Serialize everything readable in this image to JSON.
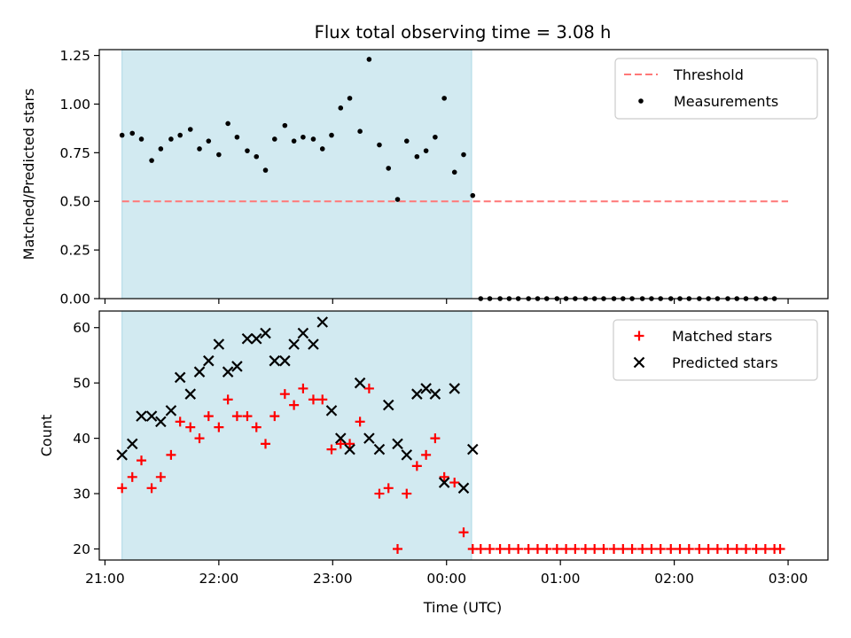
{
  "figure": {
    "title": "Flux total observing time = 3.08 h",
    "xlabel": "Time (UTC)",
    "xticks": [
      "21:00",
      "22:00",
      "23:00",
      "00:00",
      "01:00",
      "02:00",
      "03:00"
    ]
  },
  "colors": {
    "shade": "#add8e6",
    "threshold": "#ff7777",
    "measurements": "#000000",
    "matched": "#ff0000",
    "predicted": "#000000",
    "axes": "#000000"
  },
  "chart_data": [
    {
      "type": "scatter",
      "ylabel": "Matched/Predicted stars",
      "ylim": [
        0,
        1.28
      ],
      "yticks": [
        "0.00",
        "0.25",
        "0.50",
        "0.75",
        "1.00",
        "1.25"
      ],
      "xlim_hours": [
        20.95,
        27.35
      ],
      "shaded_interval_hours": [
        21.15,
        24.22
      ],
      "threshold": {
        "name": "Threshold",
        "value": 0.5,
        "x_range_hours": [
          21.15,
          27.0
        ]
      },
      "legend": {
        "position": "upper right",
        "entries": [
          "Threshold",
          "Measurements"
        ]
      },
      "series": [
        {
          "name": "Measurements",
          "x_hours": [
            21.15,
            21.24,
            21.32,
            21.41,
            21.49,
            21.58,
            21.66,
            21.75,
            21.83,
            21.91,
            22.0,
            22.08,
            22.16,
            22.25,
            22.33,
            22.41,
            22.49,
            22.58,
            22.66,
            22.74,
            22.83,
            22.91,
            22.99,
            23.07,
            23.15,
            23.24,
            23.32,
            23.41,
            23.49,
            23.57,
            23.65,
            23.74,
            23.82,
            23.9,
            23.98,
            24.07,
            24.15,
            24.23,
            24.3,
            24.38,
            24.47,
            24.55,
            24.63,
            24.72,
            24.8,
            24.88,
            24.97,
            25.05,
            25.13,
            25.22,
            25.3,
            25.38,
            25.47,
            25.55,
            25.63,
            25.72,
            25.8,
            25.88,
            25.97,
            26.05,
            26.13,
            26.22,
            26.3,
            26.38,
            26.47,
            26.55,
            26.63,
            26.72,
            26.8,
            26.88
          ],
          "y": [
            0.84,
            0.85,
            0.82,
            0.71,
            0.77,
            0.82,
            0.84,
            0.87,
            0.77,
            0.81,
            0.74,
            0.9,
            0.83,
            0.76,
            0.73,
            0.66,
            0.82,
            0.89,
            0.81,
            0.83,
            0.82,
            0.77,
            0.84,
            0.98,
            1.03,
            0.86,
            1.23,
            0.79,
            0.67,
            0.51,
            0.81,
            0.73,
            0.76,
            0.83,
            1.03,
            0.65,
            0.74,
            0.53,
            0,
            0,
            0,
            0,
            0,
            0,
            0,
            0,
            0,
            0,
            0,
            0,
            0,
            0,
            0,
            0,
            0,
            0,
            0,
            0,
            0,
            0,
            0,
            0,
            0,
            0,
            0,
            0,
            0,
            0,
            0,
            0
          ]
        }
      ]
    },
    {
      "type": "scatter",
      "ylabel": "Count",
      "ylim": [
        18,
        63
      ],
      "yticks": [
        "20",
        "30",
        "40",
        "50",
        "60"
      ],
      "xlim_hours": [
        20.95,
        27.35
      ],
      "shaded_interval_hours": [
        21.15,
        24.22
      ],
      "legend": {
        "position": "upper right",
        "entries": [
          "Matched stars",
          "Predicted stars"
        ]
      },
      "series": [
        {
          "name": "Matched stars",
          "marker": "+",
          "x_hours": [
            21.15,
            21.24,
            21.32,
            21.41,
            21.49,
            21.58,
            21.66,
            21.75,
            21.83,
            21.91,
            22.0,
            22.08,
            22.16,
            22.25,
            22.33,
            22.41,
            22.49,
            22.58,
            22.66,
            22.74,
            22.83,
            22.91,
            22.99,
            23.07,
            23.15,
            23.24,
            23.32,
            23.41,
            23.49,
            23.57,
            23.65,
            23.74,
            23.82,
            23.9,
            23.98,
            24.07,
            24.15,
            24.23,
            24.3,
            24.38,
            24.47,
            24.55,
            24.63,
            24.72,
            24.8,
            24.88,
            24.97,
            25.05,
            25.13,
            25.22,
            25.3,
            25.38,
            25.47,
            25.55,
            25.63,
            25.72,
            25.8,
            25.88,
            25.97,
            26.05,
            26.13,
            26.22,
            26.3,
            26.38,
            26.47,
            26.55,
            26.63,
            26.72,
            26.8,
            26.88,
            26.93
          ],
          "y": [
            31,
            33,
            36,
            31,
            33,
            37,
            43,
            42,
            40,
            44,
            42,
            47,
            44,
            44,
            42,
            39,
            44,
            48,
            46,
            49,
            47,
            47,
            38,
            39,
            39,
            43,
            49,
            30,
            31,
            20,
            30,
            35,
            37,
            40,
            33,
            32,
            23,
            20,
            20,
            20,
            20,
            20,
            20,
            20,
            20,
            20,
            20,
            20,
            20,
            20,
            20,
            20,
            20,
            20,
            20,
            20,
            20,
            20,
            20,
            20,
            20,
            20,
            20,
            20,
            20,
            20,
            20,
            20,
            20,
            20,
            20
          ]
        },
        {
          "name": "Predicted stars",
          "marker": "x",
          "x_hours": [
            21.15,
            21.24,
            21.32,
            21.41,
            21.49,
            21.58,
            21.66,
            21.75,
            21.83,
            21.91,
            22.0,
            22.08,
            22.16,
            22.25,
            22.33,
            22.41,
            22.49,
            22.58,
            22.66,
            22.74,
            22.83,
            22.91,
            22.99,
            23.07,
            23.15,
            23.24,
            23.32,
            23.41,
            23.49,
            23.57,
            23.65,
            23.74,
            23.82,
            23.9,
            23.98,
            24.07,
            24.15,
            24.23
          ],
          "y": [
            37,
            39,
            44,
            44,
            43,
            45,
            51,
            48,
            52,
            54,
            57,
            52,
            53,
            58,
            58,
            59,
            54,
            54,
            57,
            59,
            57,
            61,
            45,
            40,
            38,
            50,
            40,
            38,
            46,
            39,
            37,
            48,
            49,
            48,
            32,
            49,
            31,
            38
          ]
        }
      ]
    }
  ]
}
